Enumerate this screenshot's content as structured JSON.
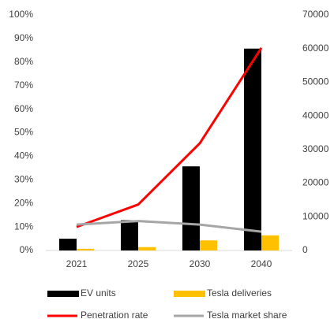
{
  "chart_data": {
    "type": "bar_line",
    "categories": [
      "2021",
      "2025",
      "2030",
      "2040"
    ],
    "series": [
      {
        "name": "EV units",
        "type": "bar",
        "axis": "y2",
        "color": "#000000",
        "values": [
          3500,
          9000,
          25000,
          60000
        ]
      },
      {
        "name": "Tesla deliveries",
        "type": "bar",
        "axis": "y2",
        "color": "#ffc000",
        "values": [
          500,
          1000,
          3000,
          4500
        ]
      },
      {
        "name": "Penetration rate",
        "type": "line",
        "axis": "y",
        "color": "#ff0000",
        "values": [
          10,
          19.5,
          45.5,
          86
        ]
      },
      {
        "name": "Tesla market share",
        "type": "line",
        "axis": "y",
        "color": "#a6a6a6",
        "values": [
          11,
          12.5,
          11,
          8
        ]
      }
    ],
    "ylim": [
      0,
      100
    ],
    "yticks": [
      {
        "value": 0,
        "label": "0%"
      },
      {
        "value": 10,
        "label": "10%"
      },
      {
        "value": 20,
        "label": "20%"
      },
      {
        "value": 30,
        "label": "30%"
      },
      {
        "value": 40,
        "label": "40%"
      },
      {
        "value": 50,
        "label": "50%"
      },
      {
        "value": 60,
        "label": "60%"
      },
      {
        "value": 70,
        "label": "70%"
      },
      {
        "value": 80,
        "label": "80%"
      },
      {
        "value": 90,
        "label": "90%"
      },
      {
        "value": 100,
        "label": "100%"
      }
    ],
    "y2lim": [
      0,
      70000
    ],
    "y2ticks": [
      0,
      10000,
      20000,
      30000,
      40000,
      50000,
      60000,
      70000
    ],
    "grid": false,
    "legend": "bottom"
  }
}
